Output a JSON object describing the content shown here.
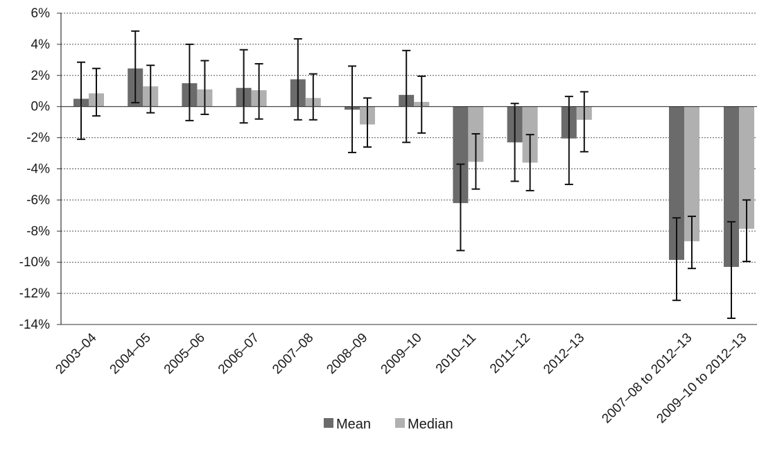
{
  "chart_data": {
    "type": "bar",
    "title": "",
    "xlabel": "",
    "ylabel": "",
    "ylim": [
      -14,
      6
    ],
    "y_ticks": [
      6,
      4,
      2,
      0,
      -2,
      -4,
      -6,
      -8,
      -10,
      -12,
      -14
    ],
    "y_tick_labels": [
      "6%",
      "4%",
      "2%",
      "0%",
      "-2%",
      "-4%",
      "-6%",
      "-8%",
      "-10%",
      "-12%",
      "-14%"
    ],
    "gridlines": "dotted horizontal",
    "legend_position": "bottom",
    "categories": [
      "2003–04",
      "2004–05",
      "2005–06",
      "2006–07",
      "2007–08",
      "2008–09",
      "2009–10",
      "2010–11",
      "2011–12",
      "2012–13",
      "2007–08 to 2012–13",
      "2009–10 to 2012–13"
    ],
    "series": [
      {
        "name": "Mean",
        "color": "#6b6b6b",
        "values": [
          0.5,
          2.45,
          1.5,
          1.2,
          1.75,
          -0.2,
          0.75,
          -6.2,
          -2.3,
          -2.05,
          -9.85,
          -10.3
        ],
        "error_low": [
          -2.1,
          0.25,
          -0.9,
          -1.05,
          -0.85,
          -2.95,
          -2.3,
          -9.25,
          -4.8,
          -5.0,
          -12.45,
          -13.6
        ],
        "error_high": [
          2.85,
          4.85,
          4.0,
          3.65,
          4.35,
          2.6,
          3.6,
          -3.7,
          0.2,
          0.65,
          -7.15,
          -7.4
        ]
      },
      {
        "name": "Median",
        "color": "#b0b0b0",
        "values": [
          0.85,
          1.3,
          1.1,
          1.05,
          0.55,
          -1.15,
          0.3,
          -3.55,
          -3.6,
          -0.85,
          -8.65,
          -7.85
        ],
        "error_low": [
          -0.6,
          -0.4,
          -0.5,
          -0.8,
          -0.85,
          -2.6,
          -1.7,
          -5.3,
          -5.4,
          -2.9,
          -10.4,
          -9.95
        ],
        "error_high": [
          2.45,
          2.65,
          2.95,
          2.75,
          2.1,
          0.55,
          1.95,
          -1.75,
          -1.8,
          0.95,
          -7.05,
          -6.0
        ]
      }
    ]
  }
}
